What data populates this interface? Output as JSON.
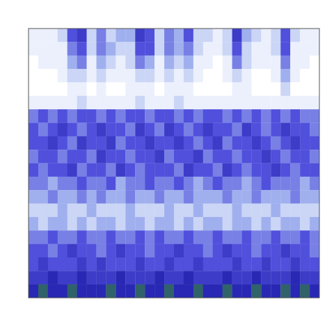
{
  "chart_data": {
    "type": "heatmap",
    "tick_labels": false,
    "grid": false,
    "color_range": [
      0,
      10
    ],
    "cells": [
      [
        1,
        1,
        1,
        2,
        5,
        6,
        2,
        4,
        2,
        3,
        3,
        6,
        5,
        2,
        4,
        3,
        5,
        2,
        2,
        1,
        2,
        6,
        3,
        2,
        1,
        2,
        5,
        2,
        1,
        1
      ],
      [
        1,
        1,
        1,
        1,
        4,
        5,
        2,
        4,
        3,
        2,
        2,
        5,
        5,
        2,
        4,
        3,
        4,
        2,
        1,
        1,
        2,
        5,
        2,
        1,
        1,
        2,
        5,
        1,
        1,
        1
      ],
      [
        0,
        1,
        1,
        1,
        3,
        4,
        1,
        3,
        2,
        1,
        2,
        4,
        3,
        1,
        3,
        2,
        3,
        1,
        1,
        0,
        1,
        4,
        2,
        1,
        1,
        1,
        4,
        1,
        1,
        0
      ],
      [
        0,
        0,
        0,
        1,
        2,
        2,
        1,
        2,
        1,
        1,
        1,
        2,
        2,
        1,
        2,
        1,
        2,
        1,
        0,
        0,
        1,
        2,
        1,
        0,
        0,
        1,
        3,
        1,
        0,
        0
      ],
      [
        0,
        0,
        0,
        0,
        1,
        1,
        0,
        1,
        0,
        0,
        1,
        1,
        1,
        0,
        1,
        1,
        1,
        0,
        0,
        0,
        0,
        1,
        1,
        0,
        0,
        0,
        2,
        0,
        0,
        0
      ],
      [
        1,
        1,
        1,
        1,
        1,
        2,
        1,
        1,
        1,
        1,
        1,
        2,
        1,
        1,
        1,
        2,
        1,
        1,
        1,
        1,
        1,
        1,
        1,
        1,
        1,
        1,
        1,
        1,
        1,
        1
      ],
      [
        4,
        5,
        4,
        5,
        4,
        5,
        5,
        4,
        5,
        4,
        5,
        5,
        4,
        5,
        5,
        4,
        5,
        4,
        5,
        5,
        4,
        5,
        4,
        5,
        4,
        5,
        4,
        5,
        4,
        4
      ],
      [
        5,
        4,
        5,
        6,
        5,
        4,
        5,
        6,
        5,
        5,
        4,
        6,
        5,
        4,
        6,
        5,
        4,
        5,
        6,
        5,
        5,
        4,
        6,
        5,
        4,
        5,
        6,
        5,
        5,
        4
      ],
      [
        5,
        5,
        6,
        5,
        4,
        6,
        5,
        5,
        6,
        4,
        5,
        5,
        6,
        5,
        5,
        6,
        5,
        4,
        5,
        6,
        4,
        5,
        5,
        6,
        5,
        4,
        5,
        6,
        5,
        5
      ],
      [
        4,
        5,
        5,
        4,
        5,
        5,
        4,
        6,
        5,
        5,
        4,
        5,
        5,
        6,
        4,
        5,
        5,
        6,
        4,
        5,
        5,
        4,
        5,
        5,
        6,
        5,
        4,
        5,
        5,
        4
      ],
      [
        5,
        4,
        5,
        5,
        6,
        4,
        5,
        5,
        4,
        6,
        5,
        4,
        5,
        5,
        5,
        4,
        6,
        5,
        5,
        4,
        6,
        5,
        4,
        5,
        5,
        6,
        5,
        4,
        5,
        5
      ],
      [
        4,
        4,
        3,
        4,
        4,
        5,
        4,
        4,
        5,
        3,
        4,
        4,
        5,
        4,
        4,
        5,
        4,
        3,
        4,
        5,
        4,
        4,
        3,
        4,
        5,
        4,
        4,
        4,
        3,
        4
      ],
      [
        3,
        3,
        4,
        3,
        3,
        4,
        3,
        4,
        3,
        3,
        4,
        3,
        3,
        4,
        3,
        3,
        4,
        3,
        3,
        3,
        4,
        3,
        3,
        4,
        3,
        3,
        3,
        4,
        3,
        3
      ],
      [
        2,
        2,
        2,
        3,
        2,
        2,
        3,
        2,
        2,
        2,
        3,
        2,
        2,
        2,
        3,
        2,
        2,
        3,
        2,
        2,
        2,
        3,
        2,
        2,
        2,
        3,
        2,
        2,
        2,
        2
      ],
      [
        3,
        2,
        3,
        3,
        2,
        3,
        2,
        3,
        3,
        2,
        3,
        3,
        2,
        3,
        3,
        2,
        3,
        2,
        3,
        3,
        2,
        3,
        3,
        2,
        3,
        2,
        3,
        3,
        2,
        3
      ],
      [
        4,
        4,
        5,
        4,
        4,
        5,
        4,
        4,
        5,
        4,
        4,
        5,
        4,
        5,
        4,
        4,
        5,
        4,
        4,
        5,
        4,
        4,
        5,
        4,
        4,
        5,
        4,
        4,
        5,
        4
      ],
      [
        5,
        5,
        4,
        5,
        6,
        5,
        5,
        4,
        5,
        6,
        5,
        5,
        4,
        5,
        5,
        6,
        5,
        5,
        4,
        5,
        6,
        5,
        5,
        4,
        5,
        5,
        6,
        5,
        5,
        4
      ],
      [
        5,
        6,
        5,
        5,
        5,
        6,
        5,
        6,
        5,
        5,
        5,
        6,
        5,
        5,
        6,
        5,
        5,
        6,
        5,
        5,
        5,
        6,
        5,
        5,
        6,
        5,
        5,
        6,
        5,
        5
      ],
      [
        6,
        6,
        7,
        6,
        6,
        7,
        6,
        6,
        6,
        7,
        6,
        6,
        6,
        7,
        6,
        6,
        7,
        6,
        6,
        6,
        7,
        6,
        6,
        7,
        6,
        6,
        6,
        7,
        6,
        6
      ],
      [
        7,
        8,
        7,
        7,
        8,
        7,
        7,
        7,
        8,
        7,
        7,
        8,
        7,
        7,
        8,
        7,
        7,
        8,
        7,
        7,
        8,
        7,
        7,
        8,
        7,
        7,
        8,
        7,
        8,
        7
      ]
    ]
  }
}
